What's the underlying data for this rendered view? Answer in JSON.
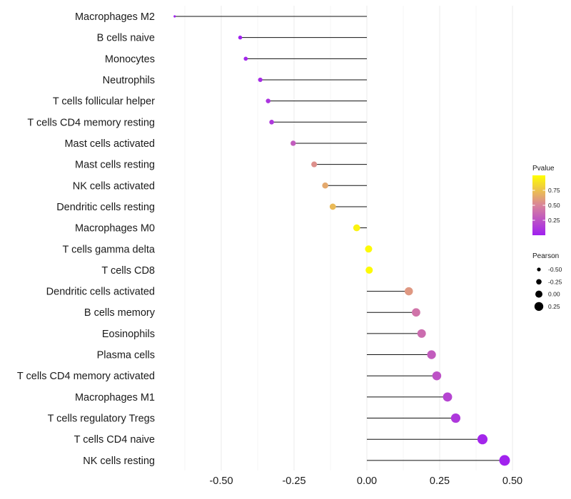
{
  "chart_data": {
    "type": "lollipop",
    "title": "",
    "xlabel": "",
    "ylabel": "",
    "xlim": [
      -0.7,
      0.52
    ],
    "x_ticks": [
      -0.5,
      -0.25,
      0.0,
      0.25,
      0.5
    ],
    "x_tick_labels": [
      "-0.50",
      "-0.25",
      "0.00",
      "0.25",
      "0.50"
    ],
    "grid": "vertical",
    "categories": [
      "Macrophages M2",
      "B cells naive",
      "Monocytes",
      "Neutrophils",
      "T cells follicular helper",
      "T cells CD4 memory resting",
      "Mast cells activated",
      "Mast cells resting",
      "NK cells activated",
      "Dendritic cells resting",
      "Macrophages M0",
      "T cells gamma delta",
      "T cells CD8",
      "Dendritic cells activated",
      "B cells memory",
      "Eosinophils",
      "Plasma cells",
      "T cells CD4 memory activated",
      "Macrophages M1",
      "T cells regulatory  Tregs",
      "T cells CD4 naive",
      "NK cells resting"
    ],
    "values": [
      -0.66,
      -0.435,
      -0.416,
      -0.366,
      -0.339,
      -0.327,
      -0.253,
      -0.181,
      -0.143,
      -0.117,
      -0.035,
      0.006,
      0.008,
      0.144,
      0.169,
      0.188,
      0.222,
      0.24,
      0.277,
      0.305,
      0.397,
      0.473
    ],
    "pvalues": [
      0.0,
      0.0,
      0.03,
      0.06,
      0.1,
      0.12,
      0.3,
      0.55,
      0.65,
      0.72,
      0.95,
      0.98,
      0.98,
      0.58,
      0.42,
      0.38,
      0.3,
      0.25,
      0.18,
      0.12,
      0.03,
      0.01
    ],
    "legend_pvalue": {
      "title": "Pvalue",
      "ticks": [
        0.25,
        0.5,
        0.75
      ],
      "tick_labels": [
        "0.25",
        "0.50",
        "0.75"
      ],
      "range": [
        0,
        1
      ],
      "color_low": "#a020f0",
      "color_mid": "#d9849b",
      "color_high": "#ffff00",
      "position": "right"
    },
    "legend_pearson": {
      "title": "Pearson",
      "values": [
        -0.5,
        -0.25,
        0.0,
        0.25
      ],
      "labels": [
        "-0.50",
        "-0.25",
        "0.00",
        "0.25"
      ],
      "position": "right"
    }
  }
}
